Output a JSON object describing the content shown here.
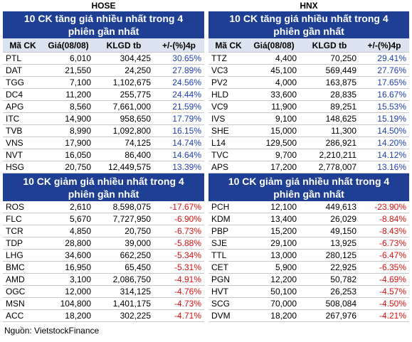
{
  "panels": [
    {
      "title": "HOSE",
      "gainers": {
        "title": "10 CK tăng giá nhiều nhất trong 4 phiên gần nhất",
        "columns": [
          "Mã CK",
          "Giá(08/08)",
          "KLGD tb",
          "+/-(%)4p"
        ],
        "rows": [
          [
            "PTL",
            "6,010",
            "304,425",
            "30.65%"
          ],
          [
            "DAT",
            "21,550",
            "24,250",
            "27.89%"
          ],
          [
            "TGG",
            "7,100",
            "1,102,675",
            "24.56%"
          ],
          [
            "DC4",
            "11,200",
            "255,775",
            "24.44%"
          ],
          [
            "APG",
            "8,560",
            "7,661,000",
            "21.59%"
          ],
          [
            "ITC",
            "14,900",
            "958,650",
            "17.79%"
          ],
          [
            "TVB",
            "8,990",
            "1,092,800",
            "16.15%"
          ],
          [
            "VNS",
            "17,900",
            "74,125",
            "14.74%"
          ],
          [
            "NVT",
            "16,050",
            "86,400",
            "14.64%"
          ],
          [
            "HSG",
            "20,750",
            "12,449,575",
            "13.39%"
          ]
        ]
      },
      "losers": {
        "title": "10 CK giảm giá nhiều nhất trong 4 phiên gần nhất",
        "rows": [
          [
            "ROS",
            "2,610",
            "8,598,075",
            "-17.67%"
          ],
          [
            "FLC",
            "5,670",
            "7,727,950",
            "-6.90%"
          ],
          [
            "TCR",
            "4,850",
            "20,750",
            "-6.73%"
          ],
          [
            "TDP",
            "28,800",
            "39,000",
            "-5.88%"
          ],
          [
            "LHG",
            "34,600",
            "662,250",
            "-5.34%"
          ],
          [
            "BMC",
            "16,950",
            "65,450",
            "-5.31%"
          ],
          [
            "AMD",
            "3,100",
            "2,086,750",
            "-4.91%"
          ],
          [
            "OGC",
            "12,000",
            "314,125",
            "-4.76%"
          ],
          [
            "MSN",
            "104,800",
            "1,401,175",
            "-4.73%"
          ],
          [
            "ACC",
            "18,200",
            "302,225",
            "-4.71%"
          ]
        ]
      }
    },
    {
      "title": "HNX",
      "gainers": {
        "title": "10 CK tăng giá nhiều nhất trong 4 phiên gần nhất",
        "columns": [
          "Mã CK",
          "Giá(08/08)",
          "KLGD tb",
          "+/-(%)4p"
        ],
        "rows": [
          [
            "TTZ",
            "4,400",
            "70,250",
            "29.41%"
          ],
          [
            "VC3",
            "45,100",
            "569,449",
            "27.76%"
          ],
          [
            "PV2",
            "4,000",
            "163,875",
            "17.65%"
          ],
          [
            "HLD",
            "33,600",
            "28,835",
            "16.67%"
          ],
          [
            "VC9",
            "11,900",
            "89,251",
            "15.53%"
          ],
          [
            "IVS",
            "9,100",
            "148,625",
            "15.19%"
          ],
          [
            "SHE",
            "15,000",
            "11,300",
            "14.50%"
          ],
          [
            "L14",
            "129,500",
            "286,921",
            "14.20%"
          ],
          [
            "TVC",
            "9,700",
            "2,210,211",
            "14.12%"
          ],
          [
            "APS",
            "17,200",
            "2,778,007",
            "13.16%"
          ]
        ]
      },
      "losers": {
        "title": "10 CK giảm giá nhiều nhất trong 4 phiên gần nhất",
        "rows": [
          [
            "PCH",
            "12,100",
            "449,613",
            "-23.90%"
          ],
          [
            "KDM",
            "13,400",
            "26,029",
            "-8.84%"
          ],
          [
            "PBP",
            "15,200",
            "49,150",
            "-8.43%"
          ],
          [
            "SJE",
            "29,100",
            "13,925",
            "-6.73%"
          ],
          [
            "TTL",
            "13,000",
            "280,125",
            "-6.47%"
          ],
          [
            "CET",
            "5,900",
            "22,925",
            "-6.35%"
          ],
          [
            "PGN",
            "12,200",
            "50,782",
            "-4.69%"
          ],
          [
            "HVT",
            "50,100",
            "26,253",
            "-4.57%"
          ],
          [
            "SCG",
            "70,000",
            "508,084",
            "-4.50%"
          ],
          [
            "DVM",
            "18,200",
            "267,976",
            "-4.21%"
          ]
        ]
      }
    }
  ],
  "source": "Nguồn: VietstockFinance"
}
